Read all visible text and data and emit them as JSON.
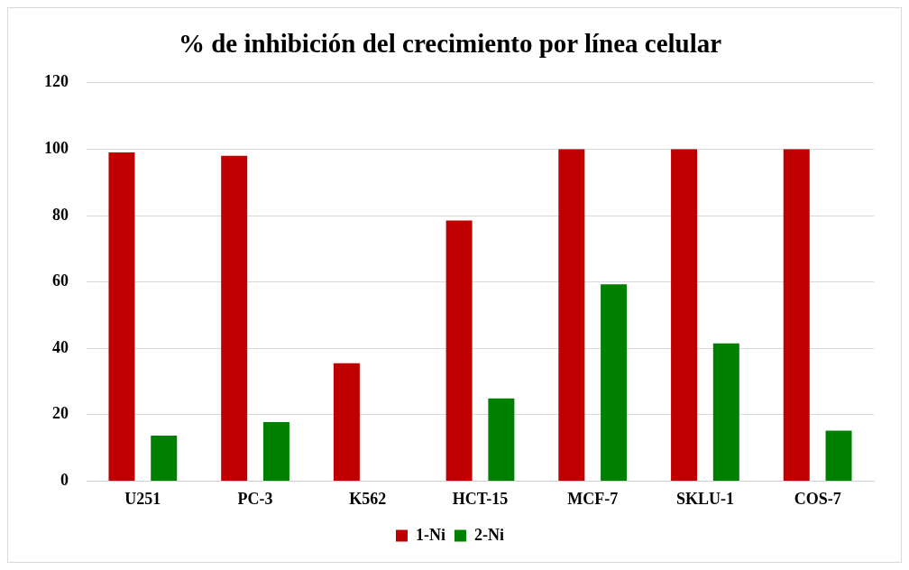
{
  "chart_data": {
    "type": "bar",
    "title": "% de inhibición del crecimiento por línea celular",
    "categories": [
      "U251",
      "PC-3",
      "K562",
      "HCT-15",
      "MCF-7",
      "SKLU-1",
      "COS-7"
    ],
    "series": [
      {
        "name": "1-Ni",
        "color": "#c00000",
        "values": [
          99,
          98,
          35.5,
          78.5,
          100,
          100,
          100
        ]
      },
      {
        "name": "2-Ni",
        "color": "#008000",
        "values": [
          13.7,
          17.8,
          null,
          24.9,
          59.3,
          41.5,
          15.2
        ]
      }
    ],
    "ylim": [
      0,
      120
    ],
    "yticks": [
      0,
      20,
      40,
      60,
      80,
      100,
      120
    ],
    "grid": "y",
    "legend": "bottom"
  }
}
